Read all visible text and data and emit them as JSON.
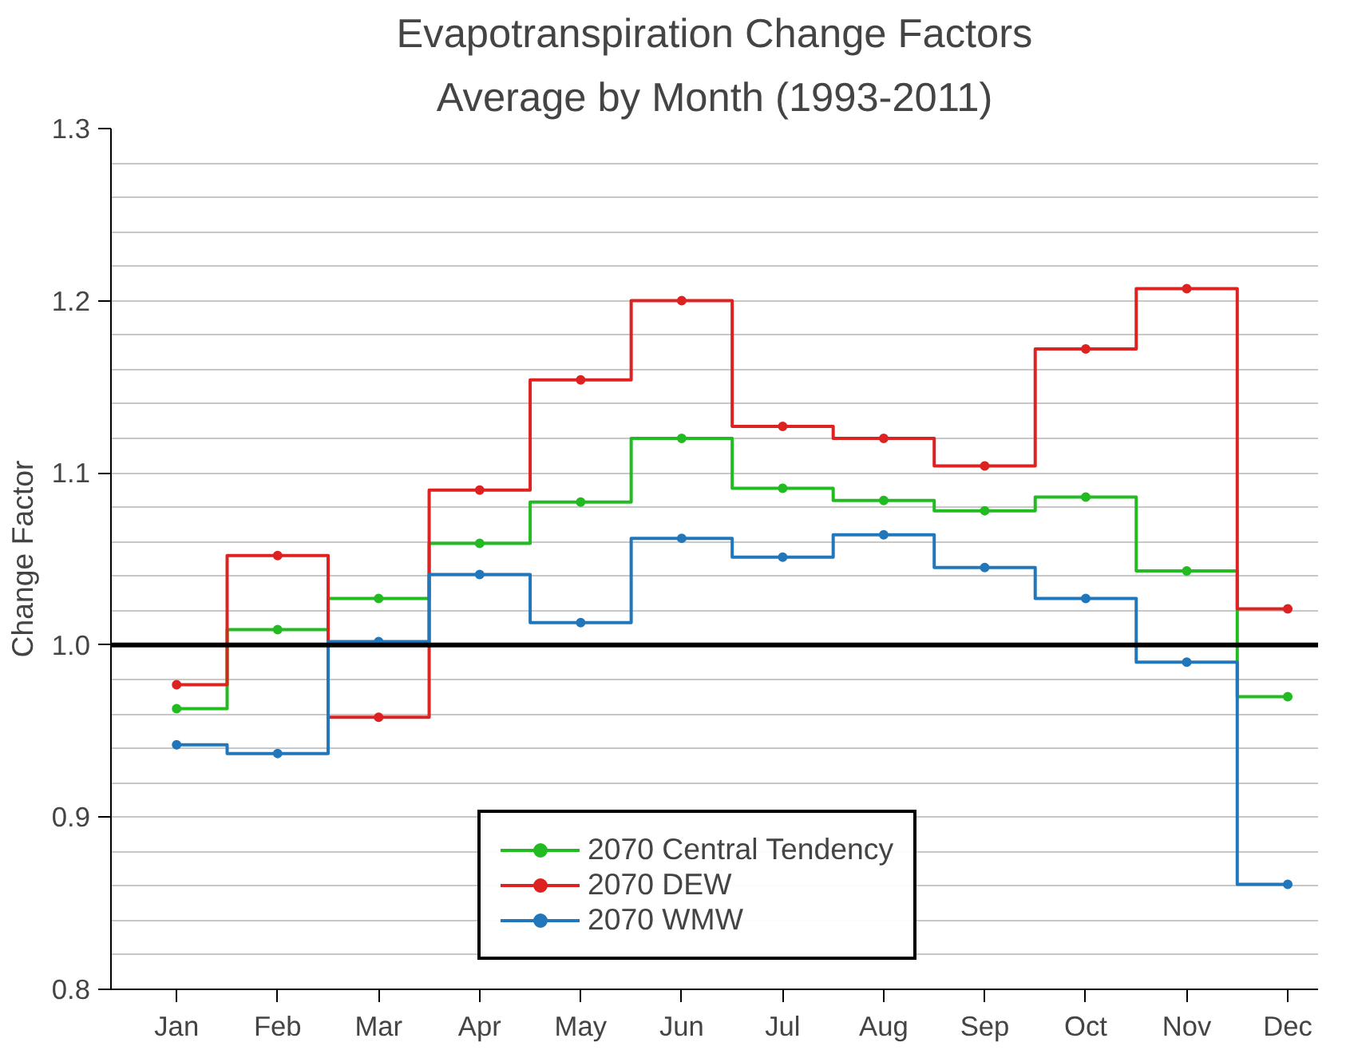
{
  "chart_data": {
    "type": "step",
    "title": "Evapotranspiration Change Factors",
    "subtitle": "Average by Month (1993-2011)",
    "ylabel": "Change Factor",
    "categories": [
      "Jan",
      "Feb",
      "Mar",
      "Apr",
      "May",
      "Jun",
      "Jul",
      "Aug",
      "Sep",
      "Oct",
      "Nov",
      "Dec"
    ],
    "series": [
      {
        "name": "2070 Central Tendency",
        "color": "#22bb22",
        "values": [
          0.963,
          1.009,
          1.027,
          1.059,
          1.083,
          1.12,
          1.091,
          1.084,
          1.078,
          1.086,
          1.043,
          0.97
        ]
      },
      {
        "name": "2070 DEW",
        "color": "#dd2222",
        "values": [
          0.977,
          1.052,
          0.958,
          1.09,
          1.154,
          1.2,
          1.127,
          1.12,
          1.104,
          1.172,
          1.207,
          1.021
        ]
      },
      {
        "name": "2070 WMW",
        "color": "#2277bb",
        "values": [
          0.942,
          0.937,
          1.002,
          1.041,
          1.013,
          1.062,
          1.051,
          1.064,
          1.045,
          1.027,
          0.99,
          0.861
        ]
      }
    ],
    "ylim": [
      0.8,
      1.3
    ],
    "yticks": [
      {
        "value": 0.8,
        "label": "0.8"
      },
      {
        "value": 0.82,
        "label": null
      },
      {
        "value": 0.84,
        "label": null
      },
      {
        "value": 0.86,
        "label": null
      },
      {
        "value": 0.88,
        "label": null
      },
      {
        "value": 0.9,
        "label": "0.9"
      },
      {
        "value": 0.92,
        "label": null
      },
      {
        "value": 0.94,
        "label": null
      },
      {
        "value": 0.96,
        "label": null
      },
      {
        "value": 0.98,
        "label": null
      },
      {
        "value": 1.0,
        "label": "1.0"
      },
      {
        "value": 1.02,
        "label": null
      },
      {
        "value": 1.04,
        "label": null
      },
      {
        "value": 1.06,
        "label": null
      },
      {
        "value": 1.08,
        "label": null
      },
      {
        "value": 1.1,
        "label": "1.1"
      },
      {
        "value": 1.12,
        "label": null
      },
      {
        "value": 1.14,
        "label": null
      },
      {
        "value": 1.16,
        "label": null
      },
      {
        "value": 1.18,
        "label": null
      },
      {
        "value": 1.2,
        "label": "1.2"
      },
      {
        "value": 1.22,
        "label": null
      },
      {
        "value": 1.24,
        "label": null
      },
      {
        "value": 1.26,
        "label": null
      },
      {
        "value": 1.28,
        "label": null
      },
      {
        "value": 1.3,
        "label": "1.3"
      }
    ],
    "ref_lines": [
      {
        "axis": "y",
        "value": 1.0,
        "color": "#000000"
      }
    ],
    "grid": "y",
    "legend": "bottom",
    "marker": "circle",
    "line_style": "solid"
  }
}
